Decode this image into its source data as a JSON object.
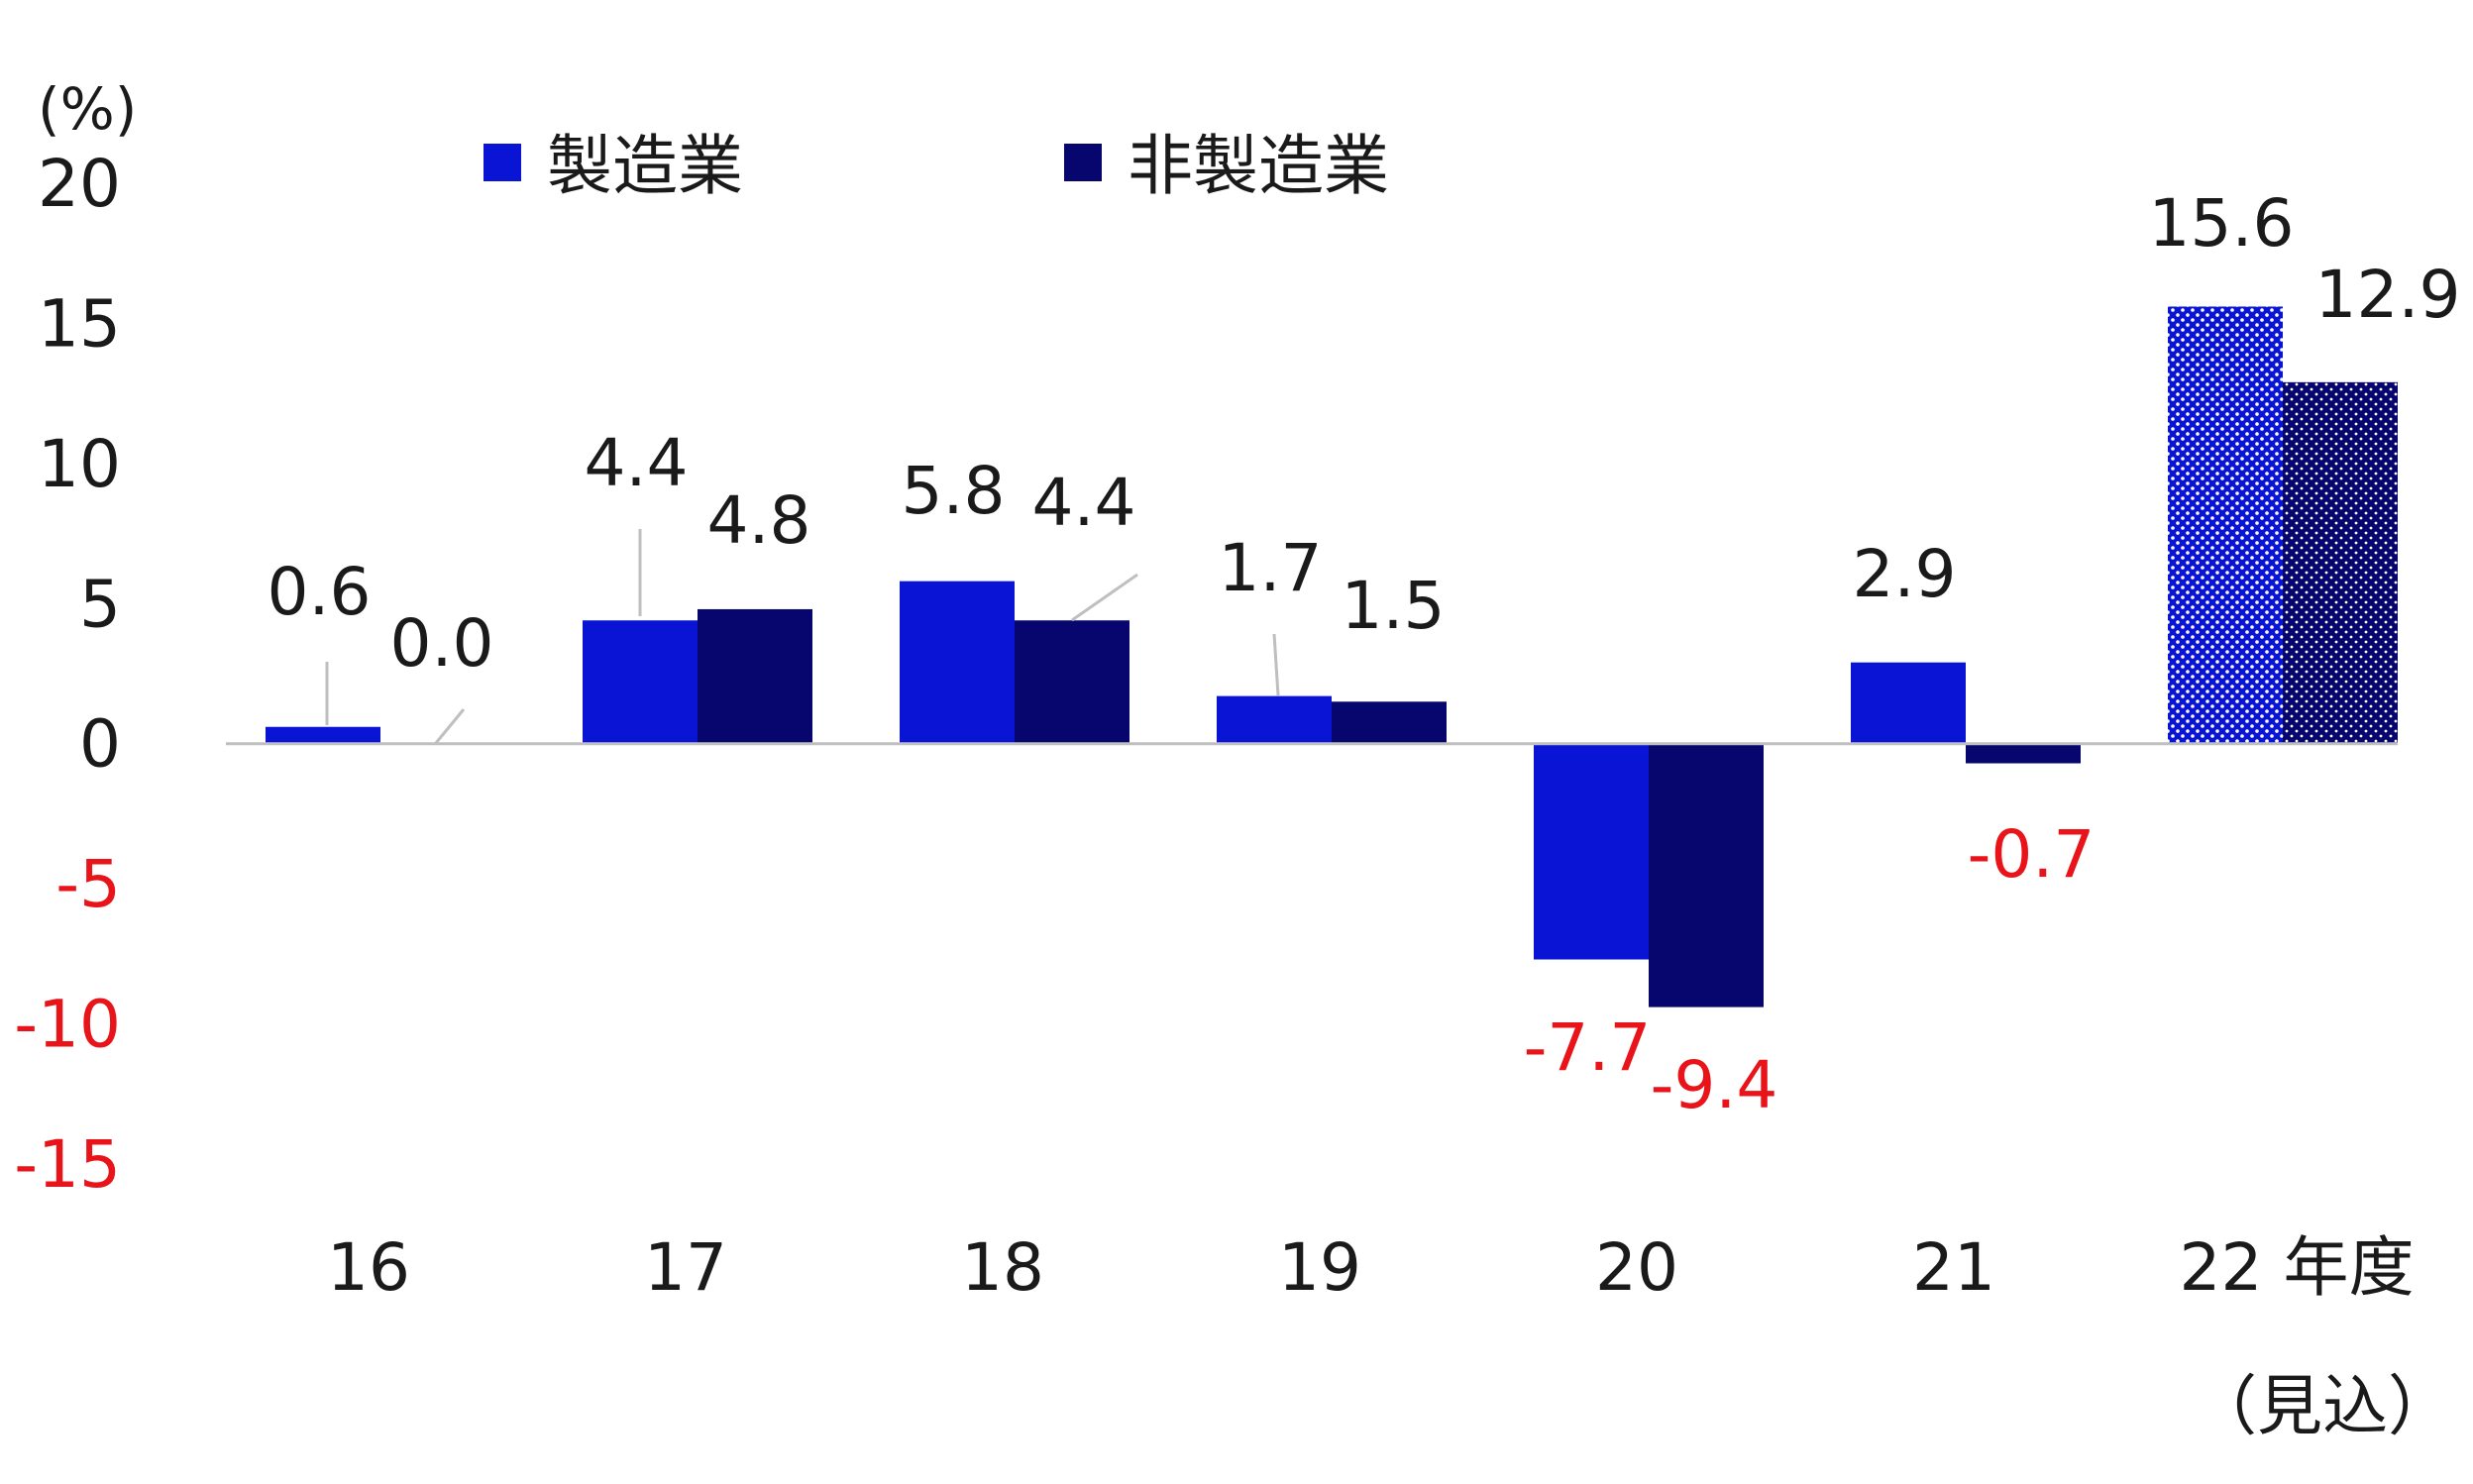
{
  "chart_data": {
    "type": "bar",
    "unit_label": "(%)",
    "categories": [
      "16",
      "17",
      "18",
      "19",
      "20",
      "21",
      "22 年度"
    ],
    "category_notes": [
      "",
      "",
      "",
      "",
      "",
      "",
      "（見込）"
    ],
    "series": [
      {
        "name": "製造業",
        "color": "#0a14d4",
        "values": [
          0.6,
          4.4,
          5.8,
          1.7,
          -7.7,
          2.9,
          15.6
        ],
        "labels": [
          "0.6",
          "4.4",
          "5.8",
          "1.7",
          "-7.7",
          "2.9",
          "15.6"
        ]
      },
      {
        "name": "非製造業",
        "color": "#06066e",
        "values": [
          0.0,
          4.8,
          4.4,
          1.5,
          -9.4,
          -0.7,
          12.9
        ],
        "labels": [
          "0.0",
          "4.8",
          "4.4",
          "1.5",
          "-9.4",
          "-0.7",
          "12.9"
        ]
      }
    ],
    "forecast_categories": [
      "22 年度"
    ],
    "ylim": [
      -15,
      20
    ],
    "yticks": [
      20,
      15,
      10,
      5,
      0,
      -5,
      -10,
      -15
    ],
    "ytick_labels": [
      "20",
      "15",
      "10",
      "5",
      "0",
      "-5",
      "-10",
      "-15"
    ],
    "negative_color": "#e8141a",
    "text_color": "#1a1a1a",
    "zero_line_color": "#bfbfbf",
    "leader_line_color": "#bfbfbf",
    "legend_position": "top-left",
    "grid": false,
    "xlabel": "",
    "ylabel": ""
  }
}
